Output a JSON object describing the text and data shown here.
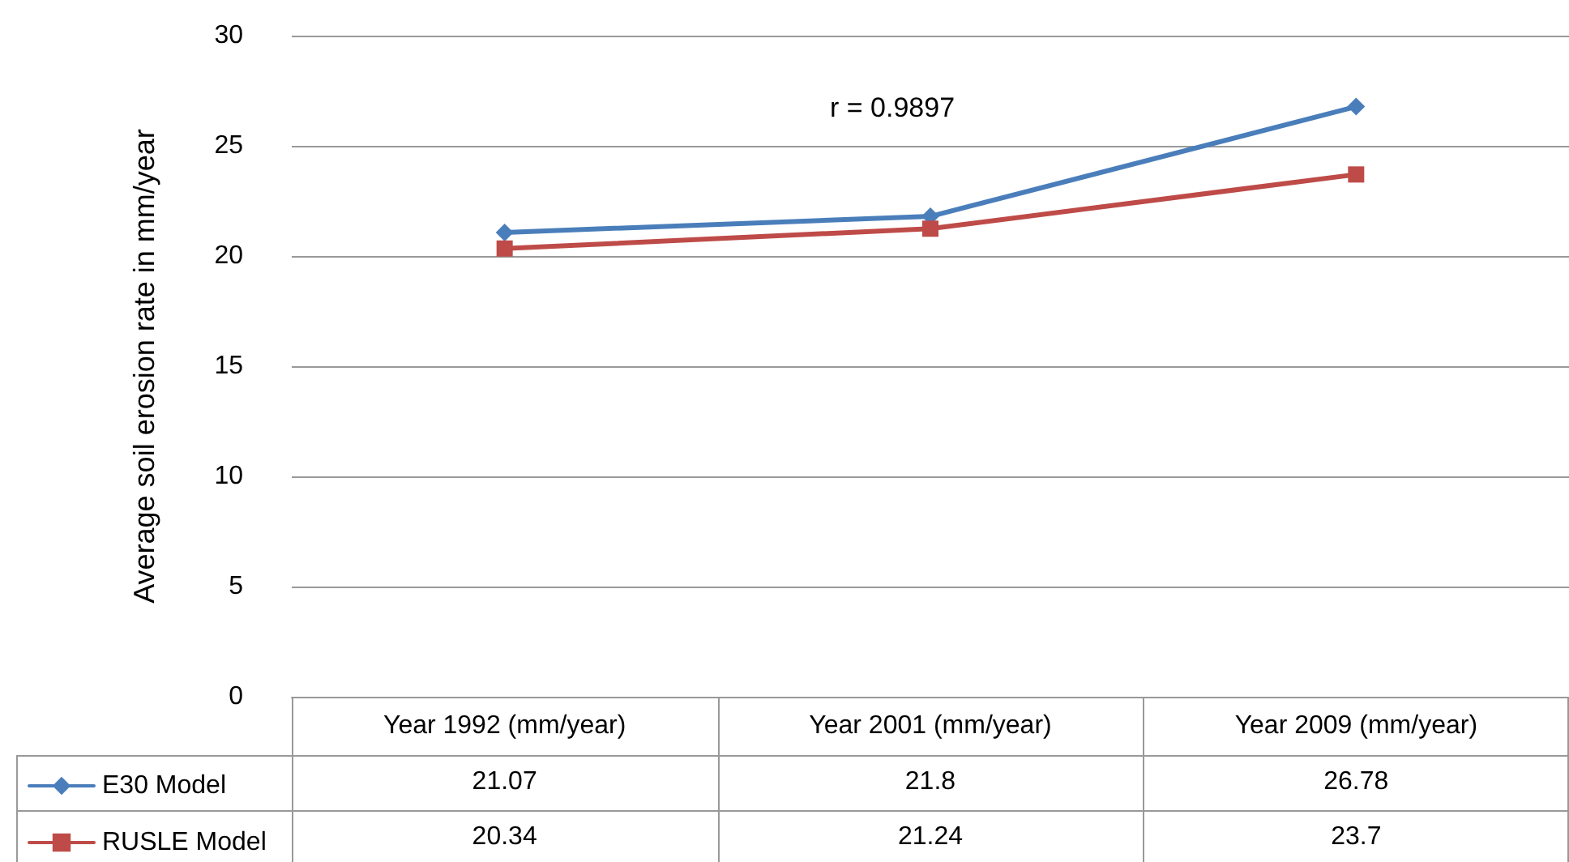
{
  "chart_data": {
    "type": "line",
    "ylabel": "Average soil erosion rate in mm/year",
    "categories": [
      "Year 1992 (mm/year)",
      "Year 2001 (mm/year)",
      "Year 2009 (mm/year)"
    ],
    "series": [
      {
        "name": "E30 Model",
        "color": "#4a7ebb",
        "marker": "diamond",
        "values": [
          21.07,
          21.8,
          26.78
        ]
      },
      {
        "name": "RUSLE Model",
        "color": "#be4b48",
        "marker": "square",
        "values": [
          20.34,
          21.24,
          23.7
        ]
      }
    ],
    "ylim": [
      0,
      30
    ],
    "yticks": [
      0,
      5,
      10,
      15,
      20,
      25,
      30
    ],
    "grid": "y",
    "legend": "bottom left",
    "data_labels": true,
    "annotations": [
      "r = 0.9897"
    ]
  }
}
